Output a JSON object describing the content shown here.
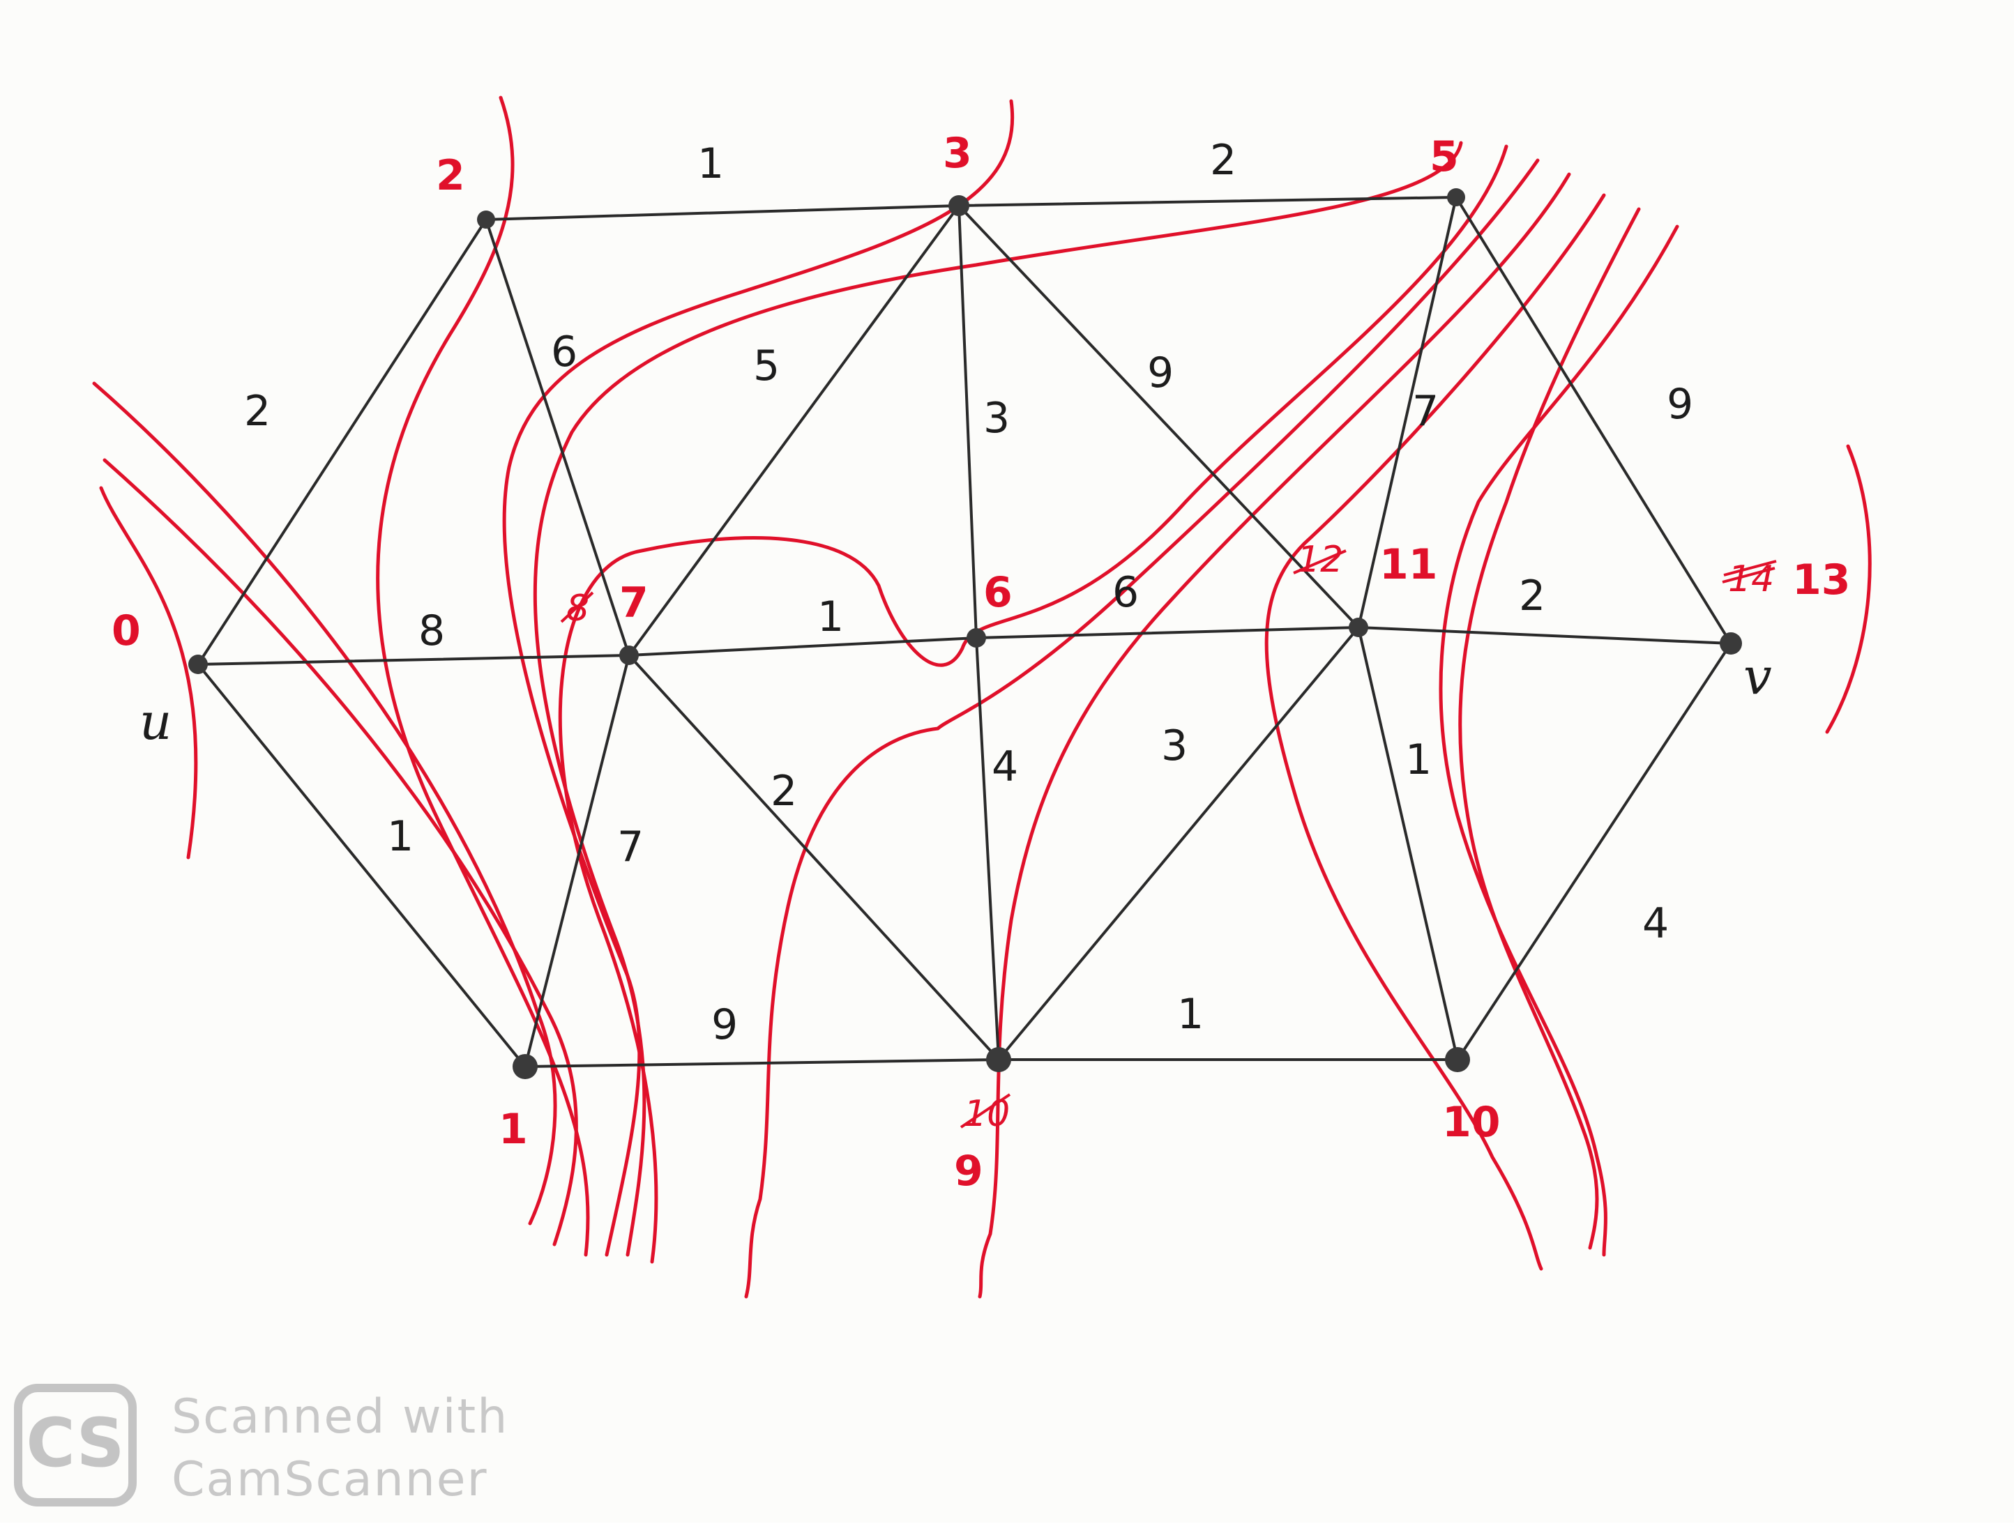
{
  "nodes": [
    {
      "id": "n0",
      "label": "0",
      "tag": "u"
    },
    {
      "id": "n2",
      "label": "2"
    },
    {
      "id": "n3",
      "label": "3"
    },
    {
      "id": "n5",
      "label": "5"
    },
    {
      "id": "n7",
      "label": "7",
      "struck": "8"
    },
    {
      "id": "n6",
      "label": "6"
    },
    {
      "id": "n11",
      "label": "11",
      "struck": "12"
    },
    {
      "id": "n13",
      "label": "13",
      "struck": "14",
      "tag": "v"
    },
    {
      "id": "n1",
      "label": "1"
    },
    {
      "id": "n9",
      "label": "9",
      "struck": "10"
    },
    {
      "id": "n10",
      "label": "10"
    }
  ],
  "edges": [
    {
      "from": "n0",
      "to": "n2",
      "weight": "2"
    },
    {
      "from": "n0",
      "to": "n7",
      "weight": "8"
    },
    {
      "from": "n0",
      "to": "n1",
      "weight": "1"
    },
    {
      "from": "n2",
      "to": "n3",
      "weight": "1"
    },
    {
      "from": "n2",
      "to": "n7",
      "weight": "6"
    },
    {
      "from": "n3",
      "to": "n5",
      "weight": "2"
    },
    {
      "from": "n3",
      "to": "n7",
      "weight": "5"
    },
    {
      "from": "n3",
      "to": "n6",
      "weight": "3"
    },
    {
      "from": "n3",
      "to": "n11",
      "weight": "9"
    },
    {
      "from": "n5",
      "to": "n11",
      "weight": "7"
    },
    {
      "from": "n5",
      "to": "n13",
      "weight": "9"
    },
    {
      "from": "n7",
      "to": "n6",
      "weight": "1"
    },
    {
      "from": "n7",
      "to": "n1",
      "weight": "7"
    },
    {
      "from": "n7",
      "to": "n9",
      "weight": "2"
    },
    {
      "from": "n6",
      "to": "n11",
      "weight": "6"
    },
    {
      "from": "n6",
      "to": "n9",
      "weight": "4"
    },
    {
      "from": "n11",
      "to": "n13",
      "weight": "2"
    },
    {
      "from": "n11",
      "to": "n9",
      "weight": "3"
    },
    {
      "from": "n11",
      "to": "n10",
      "weight": "1"
    },
    {
      "from": "n1",
      "to": "n9",
      "weight": "9"
    },
    {
      "from": "n9",
      "to": "n10",
      "weight": "1"
    },
    {
      "from": "n10",
      "to": "n13",
      "weight": "4"
    }
  ],
  "watermark": {
    "logo": "CS",
    "line1": "Scanned with",
    "line2": "CamScanner"
  }
}
